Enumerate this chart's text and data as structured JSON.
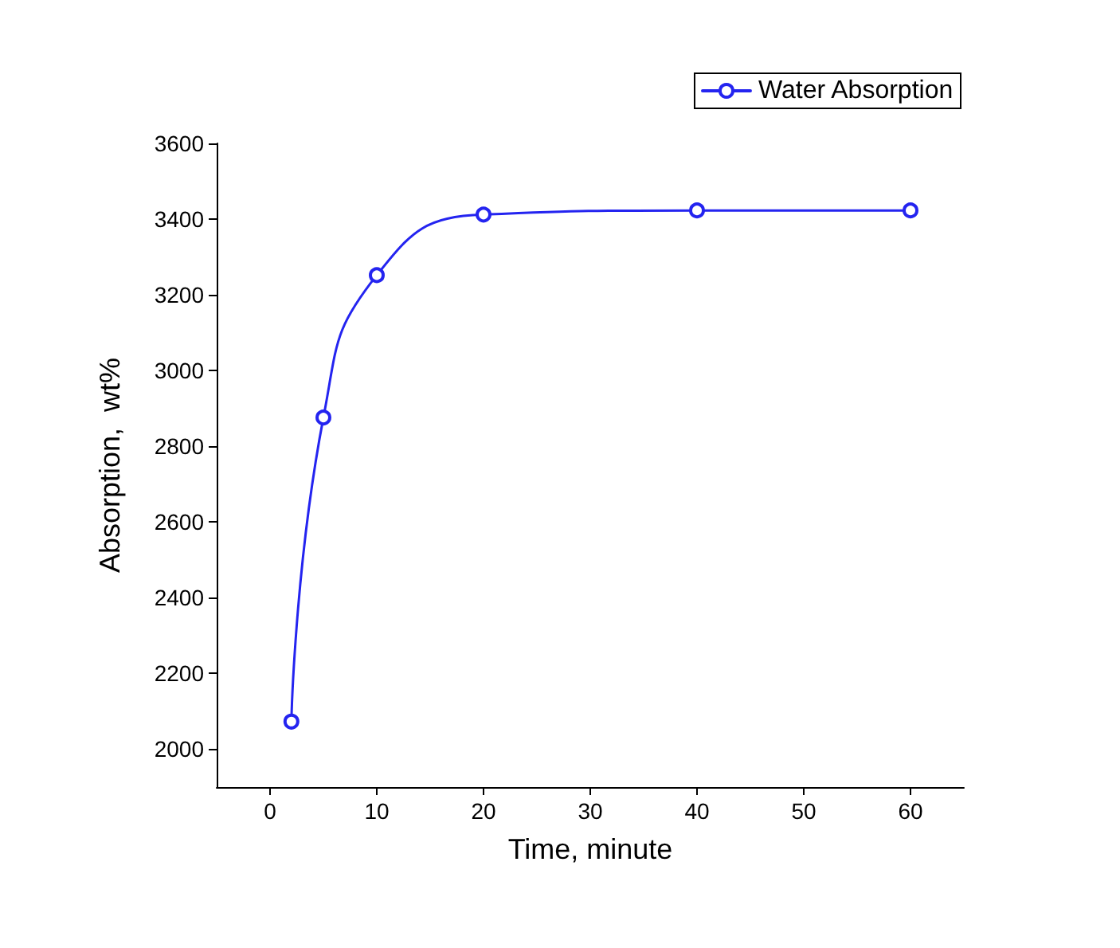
{
  "chart_data": {
    "type": "line",
    "xlabel": "Time, minute",
    "ylabel": "Absorption,  wt%",
    "x": [
      2,
      5,
      10,
      20,
      40,
      60
    ],
    "series": [
      {
        "name": "Water Absorption",
        "color": "#2424f0",
        "values": [
          2073,
          2876,
          3252,
          3412,
          3423,
          3423
        ]
      }
    ],
    "xlim": [
      -5,
      65
    ],
    "xticks": [
      0,
      10,
      20,
      30,
      40,
      50,
      60
    ],
    "ylim": [
      1900,
      3600
    ],
    "yticks": [
      2000,
      2200,
      2400,
      2600,
      2800,
      3000,
      3200,
      3400,
      3600
    ],
    "grid": false,
    "legend": "top right",
    "marker": "circle",
    "line_style": "solid"
  }
}
